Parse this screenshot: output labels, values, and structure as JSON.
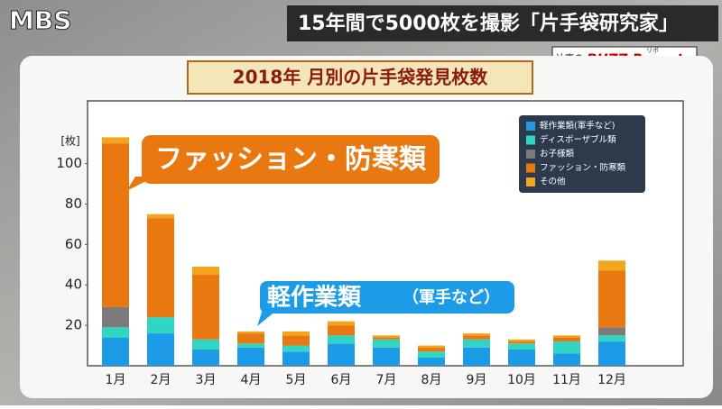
{
  "header": {
    "logo": "MBS",
    "headline": "15年間で5000枚を撮影「片手袋研究家」",
    "badge_name": "辻憲の",
    "badge_title": "BUZZ Report",
    "badge_ruby": "リポ"
  },
  "chart_data": {
    "type": "bar",
    "stacked": true,
    "title": "2018年 月別の片手袋発見枚数",
    "y_label": "[枚]",
    "categories": [
      "1月",
      "2月",
      "3月",
      "4月",
      "5月",
      "6月",
      "7月",
      "8月",
      "9月",
      "10月",
      "11月",
      "12月"
    ],
    "series": [
      {
        "name": "軽作業類(軍手など)",
        "color": "#1e9be6",
        "values": [
          14,
          16,
          8,
          9,
          7,
          11,
          9,
          4,
          9,
          8,
          6,
          12
        ]
      },
      {
        "name": "ディスポーザブル類",
        "color": "#2fd6c3",
        "values": [
          5,
          8,
          5,
          2,
          3,
          4,
          4,
          3,
          4,
          3,
          6,
          3
        ]
      },
      {
        "name": "お子様類",
        "color": "#7b7b7b",
        "values": [
          10,
          0,
          0,
          0,
          0,
          0,
          0,
          0,
          0,
          0,
          0,
          4
        ]
      },
      {
        "name": "ファッション・防寒類",
        "color": "#e8780f",
        "values": [
          81,
          49,
          32,
          5,
          5,
          5,
          1,
          2,
          2,
          1,
          2,
          28
        ]
      },
      {
        "name": "その他",
        "color": "#f2a61c",
        "values": [
          3,
          2,
          4,
          1,
          2,
          2,
          1,
          1,
          1,
          1,
          1,
          5
        ]
      }
    ],
    "ylim": [
      0,
      131
    ],
    "yticks": [
      20,
      40,
      60,
      80,
      100
    ],
    "grid": false,
    "legend": "upper right",
    "annotations": [
      "ファッション・防寒類",
      "軽作業類",
      "（軍手など）"
    ]
  }
}
